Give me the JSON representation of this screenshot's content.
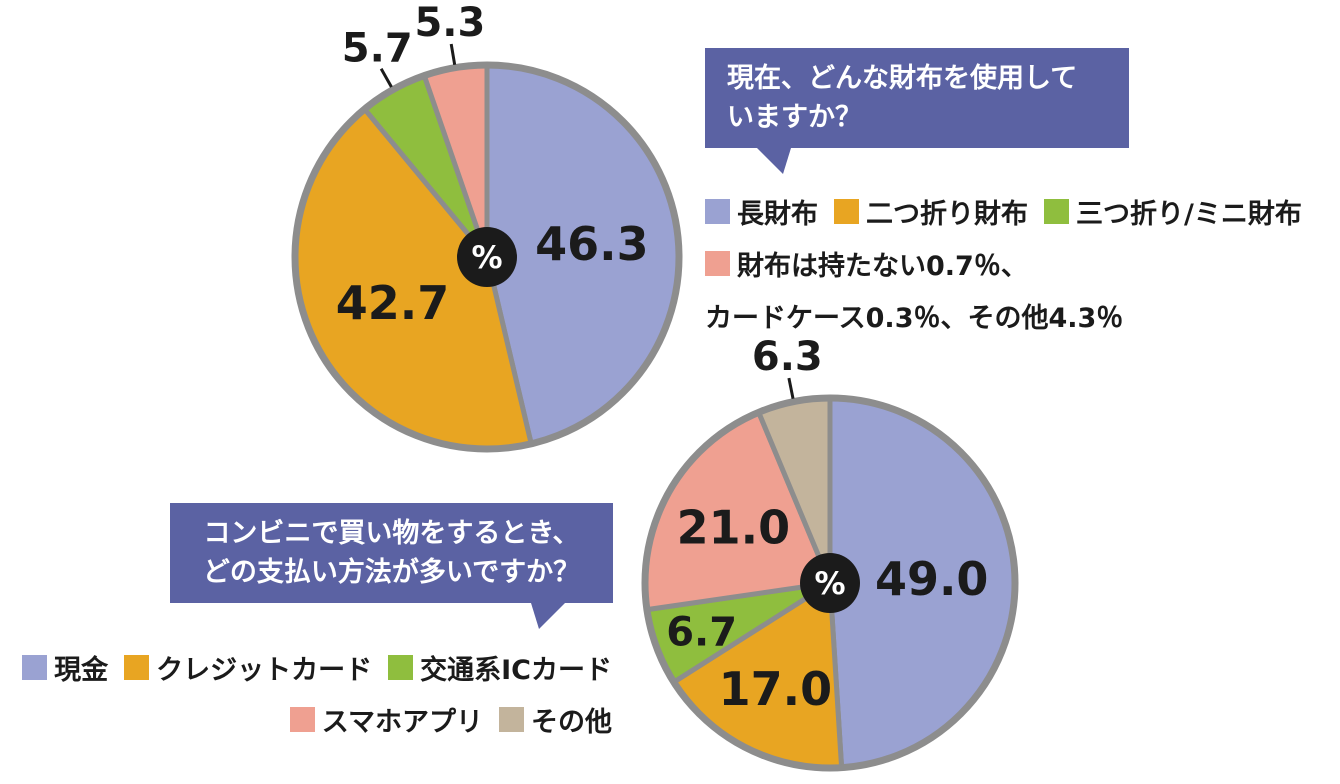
{
  "colors": {
    "background": "#ffffff",
    "bubble_bg": "#5b62a3",
    "bubble_text": "#ffffff",
    "pie_stroke": "#8d8d8d",
    "center_circle": "#1b1b1b",
    "center_text": "#ffffff",
    "value_label": "#1b1b1b"
  },
  "chart_data": [
    {
      "type": "pie",
      "title": "現在、どんな財布を使用していますか？",
      "title_lines": [
        "現在、どんな財布を使用して",
        "いますか？"
      ],
      "center_label": "%",
      "unit": "%",
      "start_angle": "top",
      "direction": "clockwise",
      "slices": [
        {
          "label": "長財布",
          "value": 46.3,
          "color": "#9aa2d2",
          "label_placement": "inside",
          "label_r": 0.55
        },
        {
          "label": "二つ折り財布",
          "value": 42.7,
          "color": "#e8a522",
          "label_placement": "inside",
          "label_r": 0.55
        },
        {
          "label": "三つ折り/ミニ財布",
          "value": 5.7,
          "color": "#8fbe3e",
          "label_placement": "outside"
        },
        {
          "label": "財布は持たない・カードケース・その他",
          "value": 5.3,
          "color": "#efa091",
          "label_placement": "outside"
        }
      ],
      "legend_rows": [
        [
          {
            "color": "#9aa2d2",
            "text": "長財布"
          },
          {
            "color": "#e8a522",
            "text": "二つ折り財布"
          },
          {
            "color": "#8fbe3e",
            "text": "三つ折り/ミニ財布"
          }
        ],
        [
          {
            "color": "#efa091",
            "text": "財布は持たない0.7％、"
          }
        ],
        [
          {
            "text": "カードケース0.3％、その他4.3％"
          }
        ]
      ]
    },
    {
      "type": "pie",
      "title": "コンビニで買い物をするとき、どの支払い方法が多いですか？",
      "title_lines": [
        "コンビニで買い物をするとき、",
        "どの支払い方法が多いですか？"
      ],
      "center_label": "%",
      "unit": "%",
      "start_angle": "top",
      "direction": "clockwise",
      "slices": [
        {
          "label": "現金",
          "value": 49.0,
          "color": "#9aa2d2",
          "label_placement": "inside",
          "label_r": 0.55
        },
        {
          "label": "クレジットカード",
          "value": 17.0,
          "color": "#e8a522",
          "label_placement": "inside",
          "label_r": 0.65
        },
        {
          "label": "交通系ICカード",
          "value": 6.7,
          "color": "#8fbe3e",
          "label_placement": "inside",
          "label_r": 0.74
        },
        {
          "label": "スマホアプリ",
          "value": 21.0,
          "color": "#efa091",
          "label_placement": "inside",
          "label_r": 0.6
        },
        {
          "label": "その他",
          "value": 6.3,
          "color": "#c3b49c",
          "label_placement": "outside"
        }
      ],
      "legend_rows": [
        [
          {
            "color": "#9aa2d2",
            "text": "現金"
          },
          {
            "color": "#e8a522",
            "text": "クレジットカード"
          },
          {
            "color": "#8fbe3e",
            "text": "交通系ICカード"
          }
        ],
        [
          {
            "color": "#efa091",
            "text": "スマホアプリ"
          },
          {
            "color": "#c3b49c",
            "text": "その他"
          }
        ]
      ]
    }
  ]
}
